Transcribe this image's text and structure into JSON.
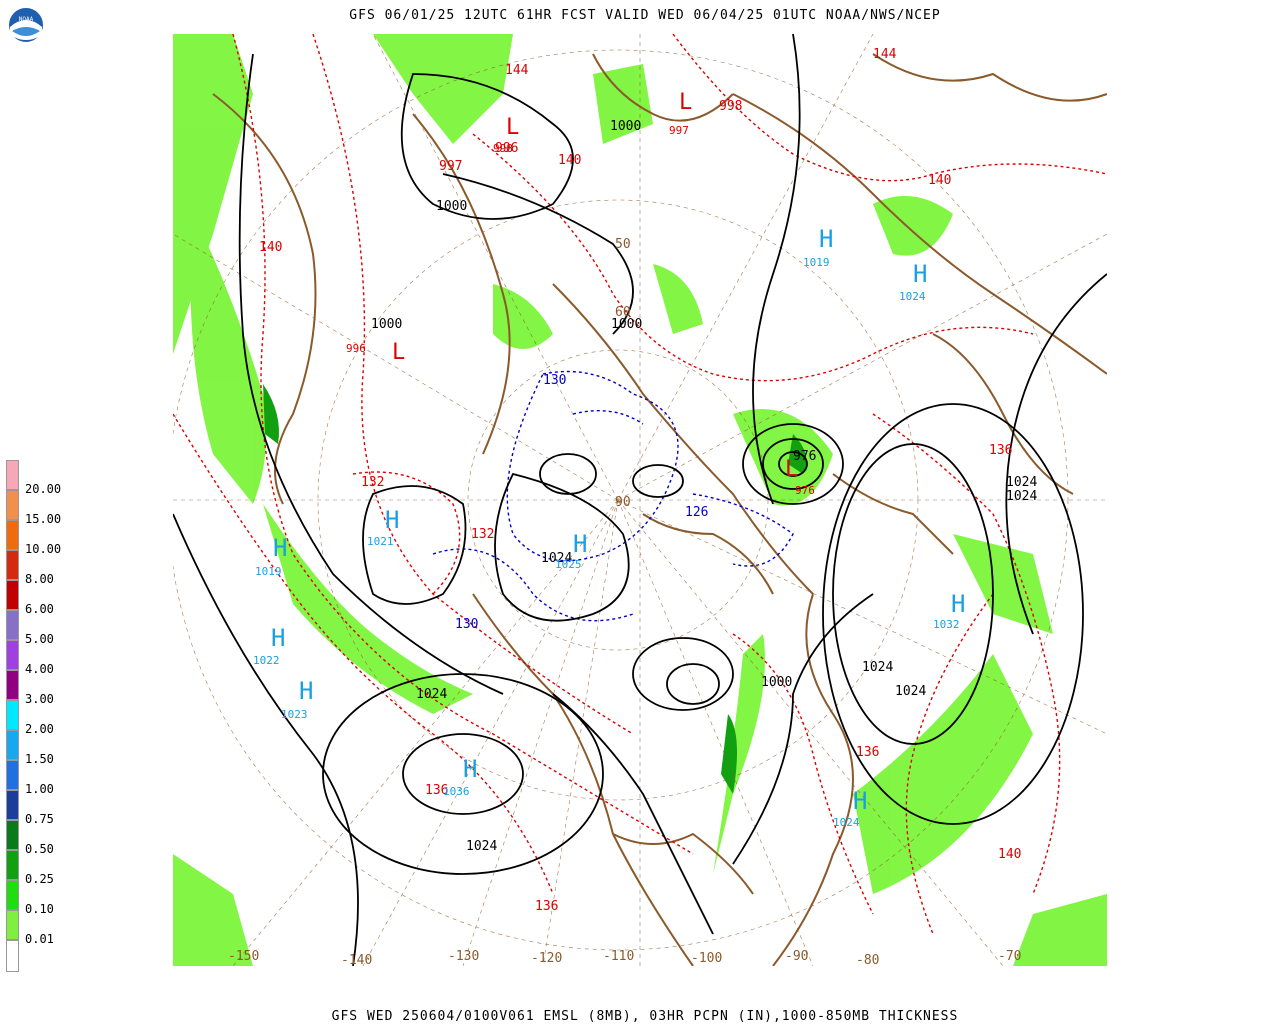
{
  "header": {
    "title": "GFS 06/01/25 12UTC 61HR FCST VALID WED 06/04/25 01UTC NOAA/NWS/NCEP"
  },
  "footer": {
    "caption": "GFS WED 250604/0100V061 EMSL (8MB), 03HR PCPN (IN),1000-850MB THICKNESS"
  },
  "logo": {
    "text": "NOAA",
    "icon": "noaa-logo-icon"
  },
  "legend": {
    "levels": [
      {
        "label": "20.00",
        "color": "#f7a8b8"
      },
      {
        "label": "15.00",
        "color": "#f0904c"
      },
      {
        "label": "10.00",
        "color": "#f06a10"
      },
      {
        "label": "8.00",
        "color": "#d42a10"
      },
      {
        "label": "6.00",
        "color": "#c00000"
      },
      {
        "label": "5.00",
        "color": "#8870c8"
      },
      {
        "label": "4.00",
        "color": "#a040e0"
      },
      {
        "label": "3.00",
        "color": "#900080"
      },
      {
        "label": "2.00",
        "color": "#00e8ff"
      },
      {
        "label": "1.50",
        "color": "#18a8f0"
      },
      {
        "label": "1.00",
        "color": "#2070e0"
      },
      {
        "label": "0.75",
        "color": "#1a3e9a"
      },
      {
        "label": "0.50",
        "color": "#0a7a1a"
      },
      {
        "label": "0.25",
        "color": "#10a010"
      },
      {
        "label": "0.10",
        "color": "#20dd10"
      },
      {
        "label": "0.01",
        "color": "#80f040"
      },
      {
        "label": "",
        "color": "#ffffff"
      }
    ]
  },
  "map": {
    "colors": {
      "isobar": "#000000",
      "thickness_warm": "#dd0000",
      "thickness_cold": "#0000cc",
      "coast": "#8b5a2b",
      "high": "#1aa0e0",
      "low": "#dd0000",
      "precip": "#7cf43a"
    },
    "longitude_labels": [
      "-150",
      "-140",
      "-130",
      "-120",
      "-110",
      "-100",
      "-90",
      "-80",
      "-70"
    ],
    "latitude_labels": [
      "50",
      "60",
      "90"
    ],
    "pressure_labels": [
      "1000",
      "1000",
      "1000",
      "1000",
      "1000",
      "1024",
      "1024",
      "1024",
      "1024",
      "1024",
      "1024",
      "1024",
      "976",
      "996",
      "997",
      "998"
    ],
    "thickness_labels": [
      "140",
      "140",
      "140",
      "140",
      "136",
      "136",
      "136",
      "136",
      "132",
      "132",
      "130",
      "130",
      "144",
      "144",
      "126"
    ],
    "highs": [
      {
        "symbol": "H",
        "value": "1019"
      },
      {
        "symbol": "H",
        "value": "1022"
      },
      {
        "symbol": "H",
        "value": "1023"
      },
      {
        "symbol": "H",
        "value": "1036"
      },
      {
        "symbol": "H",
        "value": "1021"
      },
      {
        "symbol": "H",
        "value": "1025"
      },
      {
        "symbol": "H",
        "value": "1032"
      },
      {
        "symbol": "H",
        "value": "1024"
      },
      {
        "symbol": "H",
        "value": "1019"
      },
      {
        "symbol": "H",
        "value": "1024"
      }
    ],
    "lows": [
      {
        "symbol": "L",
        "value": "998"
      },
      {
        "symbol": "L",
        "value": "997"
      },
      {
        "symbol": "L",
        "value": "996"
      },
      {
        "symbol": "L",
        "value": "976"
      }
    ]
  }
}
